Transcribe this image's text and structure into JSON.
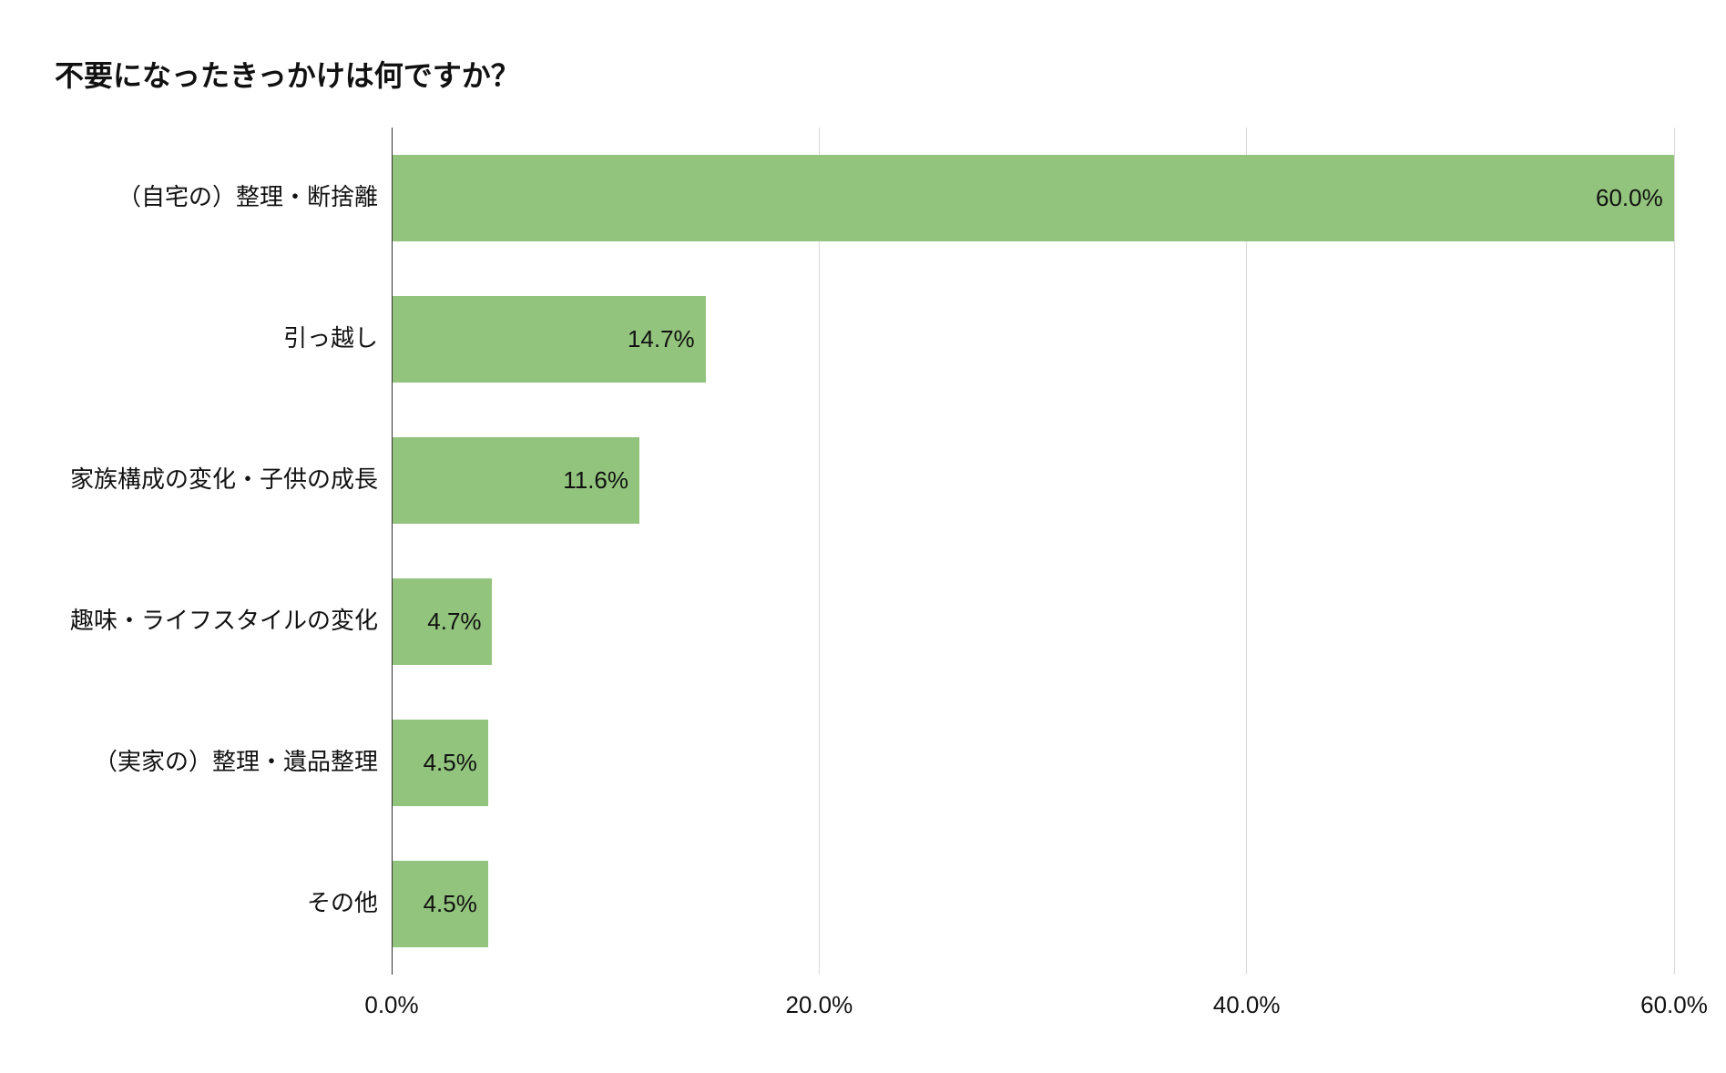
{
  "chart_data": {
    "type": "bar",
    "orientation": "horizontal",
    "title": "不要になったきっかけは何ですか？",
    "categories": [
      "（自宅の）整理・断捨離",
      "引っ越し",
      "家族構成の変化・子供の成長",
      "趣味・ライフスタイルの変化",
      "（実家の）整理・遺品整理",
      "その他"
    ],
    "values": [
      60.0,
      14.7,
      11.6,
      4.7,
      4.5,
      4.5
    ],
    "data_labels": [
      "60.0%",
      "14.7%",
      "11.6%",
      "4.7%",
      "4.5%",
      "4.5%"
    ],
    "xlim": [
      0,
      60
    ],
    "ticks": [
      0,
      20,
      40,
      60
    ],
    "tick_labels": [
      "0.0%",
      "20.0%",
      "40.0%",
      "60.0%"
    ],
    "xlabel": "",
    "ylabel": "",
    "grid": true,
    "legend": "none",
    "bar_color": "#93c47d"
  }
}
